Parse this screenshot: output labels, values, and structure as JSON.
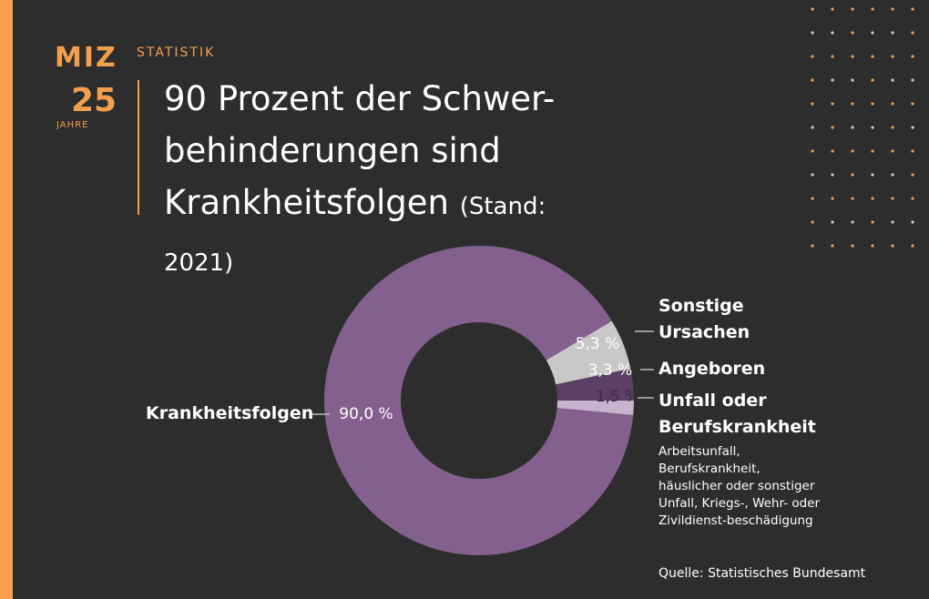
{
  "header": {
    "kicker": "STATISTIK",
    "logo": {
      "top": "MIZ",
      "number": "25",
      "caption": "JAHRE"
    }
  },
  "chart_data": {
    "type": "pie",
    "donut": true,
    "title": "90 Prozent der Schwer-behinderungen sind Krankheitsfolgen",
    "subtitle": "(Stand: 2021)",
    "categories": [
      "Krankheitsfolgen",
      "Sonstige Ursachen",
      "Angeboren",
      "Unfall oder Berufskrankheit"
    ],
    "values": [
      90.0,
      5.3,
      3.3,
      1.5
    ],
    "value_labels": [
      "90,0 %",
      "5,3 %",
      "3,3 %",
      "1,5 %"
    ],
    "colors": [
      "#84608f",
      "#c8c8c8",
      "#5b3f64",
      "#c9b2cc"
    ],
    "label_colors": [
      "#ffffff",
      "#ffffff",
      "#ffffff",
      "#3a2a40"
    ],
    "note": "Arbeitsunfall, Berufskrankheit, häuslicher oder sonstiger Unfall, Kriegs-, Wehr- oder Zivildienst-beschädigung",
    "source": "Quelle: Statistisches Bundesamt"
  }
}
